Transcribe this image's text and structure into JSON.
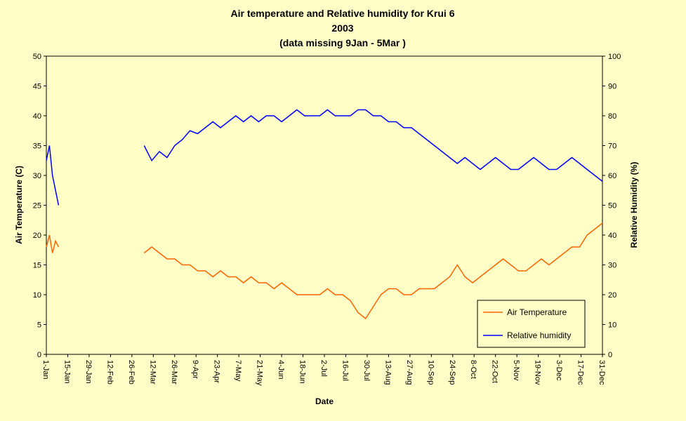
{
  "chart_data": {
    "type": "line",
    "title_lines": [
      "Air temperature and Relative humidity for Krui 6",
      "2003",
      "(data missing 9Jan - 5Mar )"
    ],
    "xlabel": "Date",
    "ylabel_left": "Air Temperature (C)",
    "ylabel_right": "Relative Humidity (%)",
    "ylim_left": [
      0,
      50
    ],
    "ylim_right": [
      0,
      100
    ],
    "y_ticks_left": [
      "0",
      "5",
      "10",
      "15",
      "20",
      "25",
      "30",
      "35",
      "40",
      "45",
      "50"
    ],
    "y_ticks_right": [
      "0",
      "10",
      "20",
      "30",
      "40",
      "50",
      "60",
      "70",
      "80",
      "90",
      "100"
    ],
    "x_range_days": [
      1,
      365
    ],
    "x_ticks": [
      {
        "day": 1,
        "label": "1-Jan"
      },
      {
        "day": 15,
        "label": "15-Jan"
      },
      {
        "day": 29,
        "label": "29-Jan"
      },
      {
        "day": 43,
        "label": "12-Feb"
      },
      {
        "day": 57,
        "label": "26-Feb"
      },
      {
        "day": 71,
        "label": "12-Mar"
      },
      {
        "day": 85,
        "label": "26-Mar"
      },
      {
        "day": 99,
        "label": "9-Apr"
      },
      {
        "day": 113,
        "label": "23-Apr"
      },
      {
        "day": 127,
        "label": "7-May"
      },
      {
        "day": 141,
        "label": "21-May"
      },
      {
        "day": 155,
        "label": "4-Jun"
      },
      {
        "day": 169,
        "label": "18-Jun"
      },
      {
        "day": 183,
        "label": "2-Jul"
      },
      {
        "day": 197,
        "label": "16-Jul"
      },
      {
        "day": 211,
        "label": "30-Jul"
      },
      {
        "day": 225,
        "label": "13-Aug"
      },
      {
        "day": 239,
        "label": "27-Aug"
      },
      {
        "day": 253,
        "label": "10-Sep"
      },
      {
        "day": 267,
        "label": "24-Sep"
      },
      {
        "day": 281,
        "label": "8-Oct"
      },
      {
        "day": 295,
        "label": "22-Oct"
      },
      {
        "day": 309,
        "label": "5-Nov"
      },
      {
        "day": 323,
        "label": "19-Nov"
      },
      {
        "day": 337,
        "label": "3-Dec"
      },
      {
        "day": 351,
        "label": "17-Dec"
      },
      {
        "day": 365,
        "label": "31-Dec"
      }
    ],
    "gap": {
      "from_day": 9,
      "to_day": 65
    },
    "legend_position": "bottom-right",
    "grid": false,
    "series": [
      {
        "name": "Air Temperature",
        "axis": "left",
        "color": "#ff6600",
        "x": [
          1,
          3,
          5,
          7,
          9,
          65,
          70,
          75,
          80,
          85,
          90,
          95,
          100,
          105,
          110,
          115,
          120,
          125,
          130,
          135,
          140,
          145,
          150,
          155,
          160,
          165,
          170,
          175,
          180,
          185,
          190,
          195,
          200,
          205,
          210,
          215,
          220,
          225,
          230,
          235,
          240,
          245,
          250,
          255,
          260,
          265,
          270,
          275,
          280,
          285,
          290,
          295,
          300,
          305,
          310,
          315,
          320,
          325,
          330,
          335,
          340,
          345,
          350,
          355,
          360,
          365
        ],
        "y": [
          18,
          20,
          17,
          19,
          18,
          17,
          18,
          17,
          16,
          16,
          15,
          15,
          14,
          14,
          13,
          14,
          13,
          13,
          12,
          13,
          12,
          12,
          11,
          12,
          11,
          10,
          10,
          10,
          10,
          11,
          10,
          10,
          9,
          7,
          6,
          8,
          10,
          11,
          11,
          10,
          10,
          11,
          11,
          11,
          12,
          13,
          15,
          13,
          12,
          13,
          14,
          15,
          16,
          15,
          14,
          14,
          15,
          16,
          15,
          16,
          17,
          18,
          18,
          20,
          21,
          22
        ]
      },
      {
        "name": "Relative humidity",
        "axis": "right",
        "color": "#0000ff",
        "x": [
          1,
          3,
          5,
          7,
          9,
          65,
          70,
          75,
          80,
          85,
          90,
          95,
          100,
          105,
          110,
          115,
          120,
          125,
          130,
          135,
          140,
          145,
          150,
          155,
          160,
          165,
          170,
          175,
          180,
          185,
          190,
          195,
          200,
          205,
          210,
          215,
          220,
          225,
          230,
          235,
          240,
          245,
          250,
          255,
          260,
          265,
          270,
          275,
          280,
          285,
          290,
          295,
          300,
          305,
          310,
          315,
          320,
          325,
          330,
          335,
          340,
          345,
          350,
          355,
          360,
          365
        ],
        "y": [
          65,
          70,
          60,
          55,
          50,
          70,
          65,
          68,
          66,
          70,
          72,
          75,
          74,
          76,
          78,
          76,
          78,
          80,
          78,
          80,
          78,
          80,
          80,
          78,
          80,
          82,
          80,
          80,
          80,
          82,
          80,
          80,
          80,
          82,
          82,
          80,
          80,
          78,
          78,
          76,
          76,
          74,
          72,
          70,
          68,
          66,
          64,
          66,
          64,
          62,
          64,
          66,
          64,
          62,
          62,
          64,
          66,
          64,
          62,
          62,
          64,
          66,
          64,
          62,
          60,
          58
        ]
      }
    ]
  }
}
